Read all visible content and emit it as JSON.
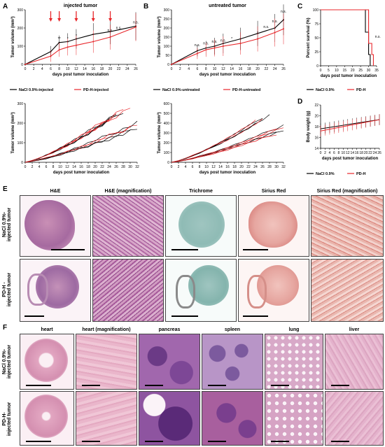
{
  "panels": {
    "A": "A",
    "B": "B",
    "C": "C",
    "D": "D",
    "E": "E",
    "F": "F"
  },
  "chart_data": [
    {
      "id": "A-top",
      "type": "line",
      "title": "injected tumor",
      "xlabel": "days post tumor inoculation",
      "ylabel": "Tumor volume (mm³)",
      "x": [
        0,
        2,
        4,
        6,
        8,
        10,
        12,
        14,
        16,
        18,
        20,
        22,
        24,
        26
      ],
      "xticks": [
        0,
        2,
        4,
        6,
        8,
        10,
        12,
        14,
        16,
        18,
        20,
        22,
        24,
        26
      ],
      "ylim": [
        0,
        300
      ],
      "yticks": [
        0,
        100,
        200,
        300
      ],
      "series": [
        {
          "name": "NaCl 0.9%-injected",
          "color": "#000000",
          "x": [
            0,
            6,
            8,
            10,
            12,
            16,
            20,
            26
          ],
          "y": [
            0,
            70,
            120,
            125,
            140,
            165,
            180,
            210
          ]
        },
        {
          "name": "PD-H-injected",
          "color": "#e8262a",
          "x": [
            0,
            6,
            8,
            10,
            12,
            16,
            20,
            26
          ],
          "y": [
            0,
            45,
            80,
            95,
            105,
            125,
            150,
            205
          ]
        }
      ],
      "annotations": [
        "**",
        "*",
        "*",
        "n.s.",
        "n.s.",
        "n.s."
      ]
    },
    {
      "id": "A-bottom",
      "type": "line",
      "xlabel": "days post tumor inoculation",
      "ylabel": "Tumor volume (mm³)",
      "xticks": [
        0,
        2,
        4,
        6,
        8,
        10,
        12,
        14,
        16,
        18,
        20,
        22,
        24,
        26,
        28,
        30,
        32
      ],
      "ylim": [
        0,
        300
      ],
      "yticks": [
        0,
        100,
        200,
        300
      ]
    },
    {
      "id": "B-top",
      "type": "line",
      "title": "untreated tumor",
      "xlabel": "days post tumor inoculation",
      "ylabel": "Tumor volume (mm³)",
      "xticks": [
        0,
        2,
        4,
        6,
        8,
        10,
        12,
        14,
        16,
        18,
        20,
        22,
        24,
        26
      ],
      "ylim": [
        0,
        300
      ],
      "yticks": [
        0,
        50,
        100,
        150,
        200,
        250,
        300
      ],
      "series": [
        {
          "name": "NaCl 0.9%-untreated",
          "color": "#000000",
          "x": [
            0,
            6,
            8,
            10,
            12,
            16,
            20,
            24,
            26
          ],
          "y": [
            0,
            75,
            90,
            100,
            115,
            140,
            170,
            200,
            245
          ]
        },
        {
          "name": "PD-H-untreated",
          "color": "#e8262a",
          "x": [
            0,
            6,
            8,
            10,
            12,
            16,
            20,
            24,
            26
          ],
          "y": [
            0,
            60,
            80,
            90,
            100,
            115,
            140,
            175,
            195
          ]
        }
      ],
      "annotations": [
        "n.s.",
        "n.s.",
        "n.s.",
        "n.s.",
        "*",
        "*",
        "n.s.",
        "n.s.",
        "n.s."
      ]
    },
    {
      "id": "B-bottom",
      "type": "line",
      "xlabel": "days post tumor inoculation",
      "ylabel": "Tumor volume (mm³)",
      "xticks": [
        0,
        2,
        4,
        6,
        8,
        10,
        12,
        14,
        16,
        18,
        20,
        22,
        24,
        26,
        28,
        30,
        32
      ],
      "ylim": [
        0,
        600
      ],
      "yticks": [
        0,
        100,
        200,
        300,
        400,
        500,
        600
      ]
    },
    {
      "id": "C",
      "type": "line",
      "xlabel": "days post tumor inoculation",
      "ylabel": "Percent survival (%)",
      "xticks": [
        0,
        5,
        10,
        15,
        20,
        25,
        30,
        35
      ],
      "ylim": [
        0,
        100
      ],
      "yticks": [
        0,
        25,
        50,
        75,
        100
      ],
      "series": [
        {
          "name": "NaCl 0.9%",
          "color": "#000000"
        },
        {
          "name": "PD-H",
          "color": "#e8262a"
        }
      ],
      "annotations": [
        "n.s."
      ]
    },
    {
      "id": "D",
      "type": "line",
      "xlabel": "days post tumor inoculation",
      "ylabel": "Body weight (g)",
      "xticks": [
        0,
        2,
        4,
        6,
        8,
        10,
        12,
        14,
        16,
        18,
        20,
        22,
        24,
        26
      ],
      "ylim": [
        14,
        22
      ],
      "yticks": [
        14,
        16,
        18,
        20,
        22
      ],
      "series": [
        {
          "name": "NaCl 0.9%",
          "color": "#000000"
        },
        {
          "name": "PD-H",
          "color": "#e8262a"
        }
      ]
    }
  ],
  "panelE": {
    "headers": [
      "H&E",
      "H&E (magnification)",
      "Trichrome",
      "Sirius Red",
      "Sirius Red (magnification)"
    ],
    "rows": [
      "NaCl 0.9%-\ninjected tumor",
      "PD-H -\ninjected tumor"
    ]
  },
  "panelF": {
    "headers": [
      "heart",
      "heart (magnification)",
      "pancreas",
      "spleen",
      "lung",
      "liver"
    ],
    "rows": [
      "NaCl 0.9%-\ninjected tumor",
      "PD-H-\ninjected tumor"
    ]
  },
  "colors": {
    "black_series": "#000000",
    "red_series": "#e8262a",
    "he_pink": "#d99ab9",
    "he_purple": "#9c5a9c",
    "trichrome": "#8fbbb5",
    "sirius_red": "#e6a6a0"
  }
}
